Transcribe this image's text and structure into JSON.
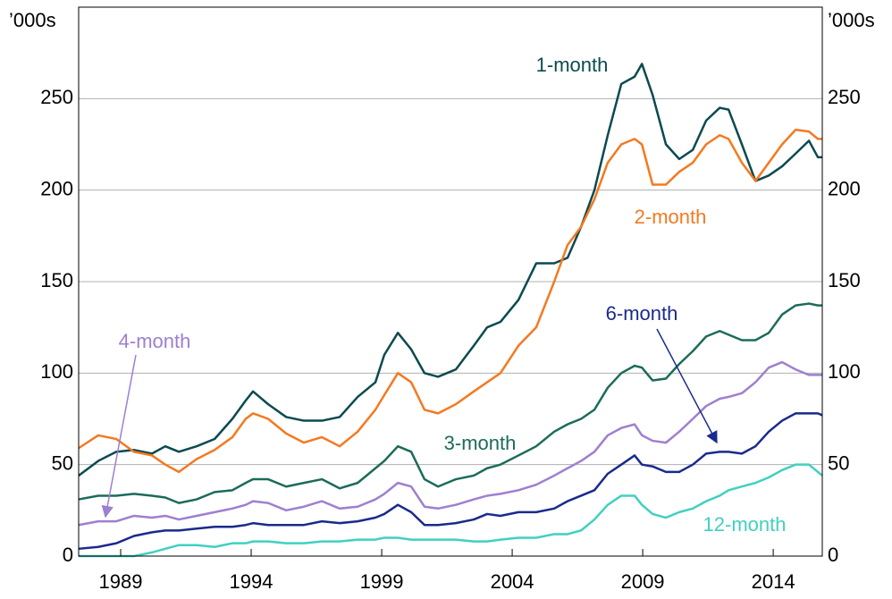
{
  "chart_data": {
    "type": "line",
    "y_label": "’000s",
    "x": [
      1987.39,
      1988.14,
      1988.83,
      1989.51,
      1990.2,
      1990.71,
      1991.23,
      1991.91,
      1992.6,
      1993.28,
      1993.79,
      1994.07,
      1994.65,
      1995.34,
      1996.02,
      1996.71,
      1997.39,
      1998.08,
      1998.76,
      1999.1,
      1999.62,
      2000.13,
      2000.64,
      2001.16,
      2001.84,
      2002.53,
      2003.04,
      2003.55,
      2004.24,
      2004.92,
      2005.61,
      2006.12,
      2006.64,
      2007.15,
      2007.66,
      2008.18,
      2008.69,
      2008.97,
      2009.38,
      2009.89,
      2010.4,
      2010.92,
      2011.43,
      2011.95,
      2012.29,
      2012.8,
      2013.32,
      2013.83,
      2014.34,
      2014.86,
      2015.37,
      2015.71,
      2015.88
    ],
    "series": [
      {
        "name": "1-month",
        "color": "#0b4a50",
        "values": [
          44,
          52,
          57,
          58,
          56,
          60,
          57,
          60,
          64,
          75,
          85,
          90,
          83,
          76,
          74,
          74,
          76,
          87,
          95,
          110,
          122,
          113,
          100,
          98,
          102,
          115,
          125,
          128,
          140,
          160,
          160,
          163,
          180,
          200,
          230,
          258,
          262,
          269,
          252,
          225,
          217,
          222,
          238,
          245,
          244,
          225,
          205,
          208,
          213,
          220,
          227,
          218,
          218
        ]
      },
      {
        "name": "2-month",
        "color": "#f47920",
        "values": [
          59,
          66,
          64,
          57,
          55,
          50,
          46,
          53,
          58,
          65,
          75,
          78,
          75,
          67,
          62,
          65,
          60,
          68,
          80,
          88,
          100,
          95,
          80,
          78,
          83,
          90,
          95,
          100,
          115,
          125,
          150,
          170,
          180,
          195,
          215,
          225,
          228,
          225,
          203,
          203,
          210,
          215,
          225,
          230,
          228,
          215,
          205,
          215,
          225,
          233,
          232,
          228,
          228
        ]
      },
      {
        "name": "3-month",
        "color": "#1b6b5a",
        "values": [
          31,
          33,
          33,
          34,
          33,
          32,
          29,
          31,
          35,
          36,
          40,
          42,
          42,
          38,
          40,
          42,
          37,
          40,
          48,
          52,
          60,
          57,
          42,
          38,
          42,
          44,
          48,
          50,
          55,
          60,
          68,
          72,
          75,
          80,
          92,
          100,
          104,
          103,
          96,
          97,
          105,
          112,
          120,
          123,
          121,
          118,
          118,
          122,
          132,
          137,
          138,
          137,
          137
        ]
      },
      {
        "name": "4-month",
        "color": "#9e7fd0",
        "values": [
          17,
          19,
          19,
          22,
          21,
          22,
          20,
          22,
          24,
          26,
          28,
          30,
          29,
          25,
          27,
          30,
          26,
          27,
          31,
          34,
          40,
          38,
          27,
          26,
          28,
          31,
          33,
          34,
          36,
          39,
          44,
          48,
          52,
          57,
          66,
          70,
          72,
          66,
          63,
          62,
          68,
          75,
          82,
          86,
          87,
          89,
          95,
          103,
          106,
          102,
          99,
          99,
          99
        ]
      },
      {
        "name": "6-month",
        "color": "#1a2a8c",
        "values": [
          4,
          5,
          7,
          11,
          13,
          14,
          14,
          15,
          16,
          16,
          17,
          18,
          17,
          17,
          17,
          19,
          18,
          19,
          21,
          23,
          28,
          24,
          17,
          17,
          18,
          20,
          23,
          22,
          24,
          24,
          26,
          30,
          33,
          36,
          45,
          50,
          55,
          50,
          49,
          46,
          46,
          50,
          56,
          57,
          57,
          56,
          60,
          68,
          74,
          78,
          78,
          78,
          77
        ]
      },
      {
        "name": "12-month",
        "color": "#40d0c0",
        "values": [
          0,
          0,
          0,
          0,
          2,
          4,
          6,
          6,
          5,
          7,
          7,
          8,
          8,
          7,
          7,
          8,
          8,
          9,
          9,
          10,
          10,
          9,
          9,
          9,
          9,
          8,
          8,
          9,
          10,
          10,
          12,
          12,
          14,
          20,
          28,
          33,
          33,
          28,
          23,
          21,
          24,
          26,
          30,
          33,
          36,
          38,
          40,
          43,
          47,
          50,
          50,
          46,
          44
        ]
      }
    ],
    "xlim": [
      1987.39,
      2015.88
    ],
    "xticks": [
      1989,
      1994,
      1999,
      2004,
      2009,
      2014
    ],
    "ylim": [
      0,
      300
    ],
    "yticks": [
      0,
      50,
      100,
      150,
      200,
      250
    ],
    "y2lim": [
      0,
      300
    ],
    "y2ticks": [
      0,
      50,
      100,
      150,
      200,
      250
    ],
    "grid": true
  }
}
